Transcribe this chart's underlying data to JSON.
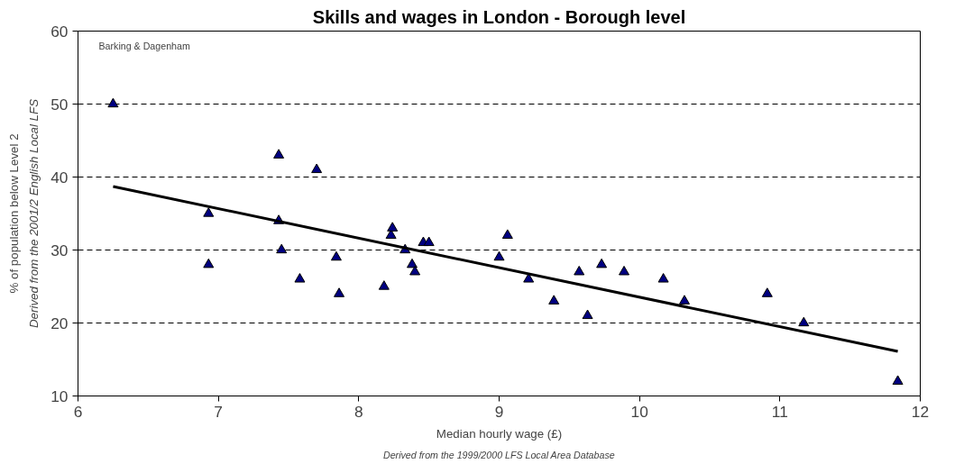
{
  "chart_data": {
    "type": "scatter",
    "title": "Skills and wages in London - Borough level",
    "xlabel": "Median hourly wage (£)",
    "ylabel": "% of population below Level 2",
    "annotations": [
      "Barking & Dagenham",
      "Derived from the 2001/2 English Local LFS",
      "Derived from the 1999/2000 LFS Local Area Database"
    ],
    "xlim": [
      6,
      12
    ],
    "xticks": [
      6,
      7,
      8,
      9,
      10,
      11,
      12
    ],
    "ylim": [
      10,
      60
    ],
    "yticks": [
      10,
      20,
      30,
      40,
      50,
      60
    ],
    "grid": "y",
    "series": [
      {
        "color": "#000080",
        "marker": "triangle",
        "x": [
          6.25,
          6.93,
          6.93,
          7.43,
          7.43,
          7.45,
          7.58,
          7.7,
          7.84,
          7.86,
          8.18,
          8.23,
          8.24,
          8.33,
          8.38,
          8.4,
          8.46,
          8.5,
          9.0,
          9.06,
          9.21,
          9.39,
          9.57,
          9.63,
          9.73,
          9.89,
          10.17,
          10.32,
          10.91,
          11.17,
          11.84
        ],
        "values": [
          50,
          35,
          28,
          43,
          34,
          30,
          26,
          41,
          29,
          24,
          25,
          32,
          33,
          30,
          28,
          27,
          31,
          31,
          29,
          32,
          26,
          23,
          27,
          21,
          28,
          27,
          26,
          23,
          24,
          20,
          12
        ]
      },
      {
        "type": "line",
        "color": "#000000",
        "marker": "none",
        "line_style": "solid",
        "x": [
          6.25,
          11.84
        ],
        "values": [
          38.7,
          16.1
        ]
      }
    ]
  }
}
